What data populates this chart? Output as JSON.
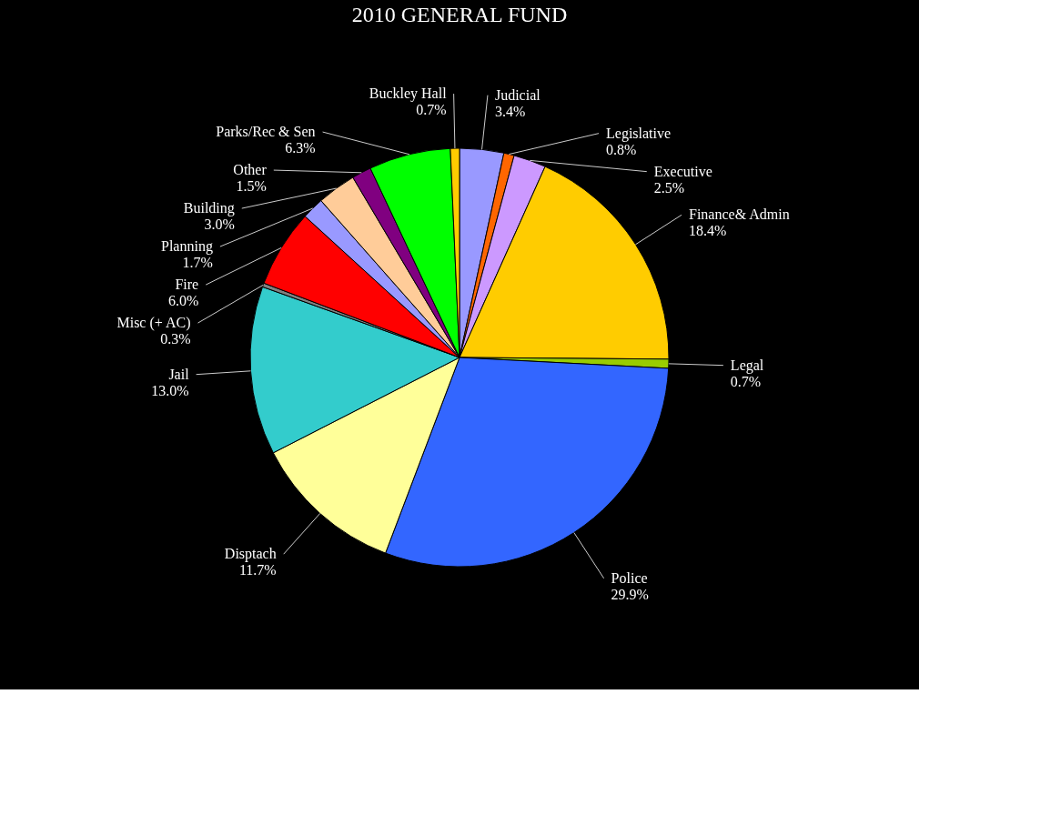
{
  "chart_data": {
    "type": "pie",
    "title": "2010 GENERAL FUND",
    "categories": [
      "Judicial",
      "Legislative",
      "Executive",
      "Finance& Admin",
      "Legal",
      "Police",
      "Disptach",
      "Jail",
      "Misc (+ AC)",
      "Fire",
      "Planning",
      "Building",
      "Other",
      "Parks/Rec & Sen",
      "Buckley Hall"
    ],
    "values": [
      3.4,
      0.8,
      2.5,
      18.4,
      0.7,
      29.9,
      11.7,
      13.0,
      0.3,
      6.0,
      1.7,
      3.0,
      1.5,
      6.3,
      0.7
    ],
    "value_labels": [
      "3.4%",
      "0.8%",
      "2.5%",
      "18.4%",
      "0.7%",
      "29.9%",
      "11.7%",
      "13.0%",
      "0.3%",
      "6.0%",
      "1.7%",
      "3.0%",
      "1.5%",
      "6.3%",
      "0.7%"
    ],
    "colors": [
      "#9999ff",
      "#ff6600",
      "#cc99ff",
      "#ffcc00",
      "#99cc00",
      "#3366ff",
      "#ffff99",
      "#33cccc",
      "#808080",
      "#ff0000",
      "#9999ff",
      "#ffcc99",
      "#800080",
      "#00ff00",
      "#ffcc00"
    ],
    "legend": false
  }
}
